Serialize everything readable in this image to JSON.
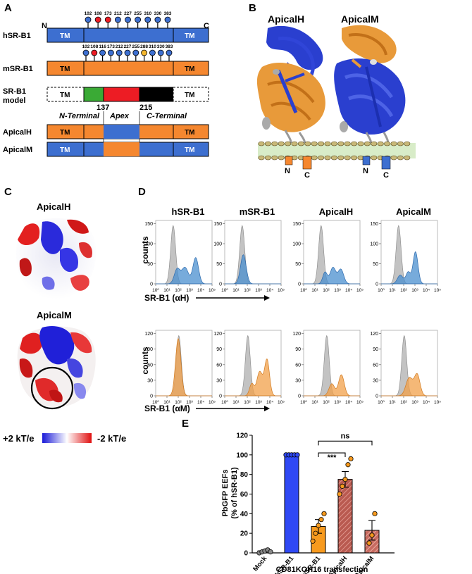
{
  "panel_labels": {
    "a": "A",
    "b": "B",
    "c": "C",
    "d": "D",
    "e": "E"
  },
  "colors": {
    "human_blue": "#3d6fd0",
    "mouse_orange": "#f5872f",
    "apex_green": "#3aaa35",
    "apex_red": "#ed1c24",
    "cterm_black": "#000000",
    "membrane": "#d8ecc8",
    "hist_gray": "#b8b8b8",
    "hist_blue": "#4a8fcf",
    "hist_orange": "#f2a04a",
    "apicalh_bar": "#b5504a",
    "apicalm_bar": "#c86a5e",
    "mock_bar": "#f0f0f0"
  },
  "panel_a": {
    "n_label": "N",
    "c_label": "C",
    "tm_label": "TM",
    "hsr_label": "hSR-B1",
    "msr_label": "mSR-B1",
    "model_label": "SR-B1",
    "model_label_2": "model",
    "hsr_sites": [
      "102",
      "108",
      "173",
      "212",
      "227",
      "255",
      "310",
      "330",
      "383"
    ],
    "msr_sites": [
      "102",
      "108",
      "116",
      "173",
      "212",
      "227",
      "255",
      "288",
      "310",
      "330",
      "383"
    ],
    "residue_start": "137",
    "residue_end": "215",
    "region_n": "N-Terminal",
    "region_apex": "Apex",
    "region_c": "C-Terminal",
    "apicalh_label": "ApicalH",
    "apicalm_label": "ApicalM"
  },
  "panel_b": {
    "title_h": "ApicalH",
    "title_m": "ApicalM",
    "n": "N",
    "c": "C"
  },
  "panel_c": {
    "title_h": "ApicalH",
    "title_m": "ApicalM",
    "scale_left": "+2 kT/e",
    "scale_right": "-2 kT/e"
  },
  "panel_d": {
    "row1_titles": [
      "hSR-B1",
      "mSR-B1",
      "ApicalH",
      "ApicalM"
    ],
    "ylabel": "counts",
    "row1_xlabel": "SR-B1 (αH)",
    "row2_xlabel": "SR-B1 (αM)",
    "row1_yticks": [
      "0",
      "50",
      "100",
      "150"
    ],
    "row2_yticks": [
      "0",
      "30",
      "60",
      "90",
      "120"
    ],
    "xticks": [
      "10⁰",
      "10¹",
      "10²",
      "10³",
      "10⁴",
      "10⁵"
    ]
  },
  "chart_data": {
    "type": "bar",
    "title": "",
    "ylabel": "PbGFP EEFs (% of hSR-B1)",
    "ylabel_line1": "PbGFP EEFs",
    "ylabel_line2": "(% of hSR-B1)",
    "xlabel": "CD81KOH16 transfection",
    "categories": [
      "Mock",
      "hSR-B1",
      "mSR-B1",
      "ApicalH",
      "ApicalM"
    ],
    "values": [
      2,
      100,
      27,
      75,
      23
    ],
    "errors": [
      1,
      0,
      7,
      8,
      10
    ],
    "points": [
      [
        0,
        1,
        2,
        3,
        1
      ],
      [
        100,
        100,
        100,
        100,
        100
      ],
      [
        12,
        20,
        28,
        34,
        40
      ],
      [
        60,
        68,
        75,
        90,
        96
      ],
      [
        10,
        18,
        40
      ]
    ],
    "ylim": [
      0,
      120
    ],
    "yticks": [
      "0",
      "20",
      "40",
      "60",
      "80",
      "100",
      "120"
    ],
    "sig_inner": "***",
    "sig_outer": "ns"
  }
}
